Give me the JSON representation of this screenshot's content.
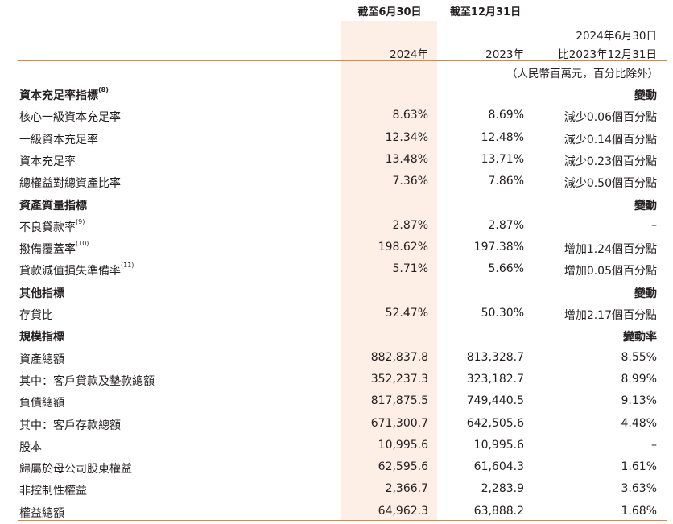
{
  "header": {
    "col1_period": "截至6月30日",
    "col2_period": "截至12月31日",
    "col1_year": "2024年",
    "col2_year": "2023年",
    "col3_line1": "2024年6月30日",
    "col3_line2": "比2023年12月31日"
  },
  "units_note": "（人民幣百萬元，百分比除外）",
  "sections": [
    {
      "title": "資本充足率指標",
      "title_note": "(8)",
      "change_header": "變動",
      "rows": [
        {
          "label": "核心一級資本充足率",
          "note": "",
          "v2024": "8.63%",
          "v2023": "8.69%",
          "change": "減少0.06個百分點"
        },
        {
          "label": "一級資本充足率",
          "note": "",
          "v2024": "12.34%",
          "v2023": "12.48%",
          "change": "減少0.14個百分點"
        },
        {
          "label": "資本充足率",
          "note": "",
          "v2024": "13.48%",
          "v2023": "13.71%",
          "change": "減少0.23個百分點"
        },
        {
          "label": "總權益對總資產比率",
          "note": "",
          "v2024": "7.36%",
          "v2023": "7.86%",
          "change": "減少0.50個百分點"
        }
      ]
    },
    {
      "title": "資產質量指標",
      "title_note": "",
      "change_header": "變動",
      "rows": [
        {
          "label": "不良貸款率",
          "note": "(9)",
          "v2024": "2.87%",
          "v2023": "2.87%",
          "change": "–"
        },
        {
          "label": "撥備覆蓋率",
          "note": "(10)",
          "v2024": "198.62%",
          "v2023": "197.38%",
          "change": "增加1.24個百分點"
        },
        {
          "label": "貸款減值損失準備率",
          "note": "(11)",
          "v2024": "5.71%",
          "v2023": "5.66%",
          "change": "增加0.05個百分點"
        }
      ]
    },
    {
      "title": "其他指標",
      "title_note": "",
      "change_header": "變動",
      "rows": [
        {
          "label": "存貸比",
          "note": "",
          "v2024": "52.47%",
          "v2023": "50.30%",
          "change": "增加2.17個百分點"
        }
      ]
    },
    {
      "title": "規模指標",
      "title_note": "",
      "change_header": "變動率",
      "rows": [
        {
          "label": "資產總額",
          "note": "",
          "v2024": "882,837.8",
          "v2023": "813,328.7",
          "change": "8.55%"
        },
        {
          "label": "其中：客戶貸款及墊款總額",
          "note": "",
          "v2024": "352,237.3",
          "v2023": "323,182.7",
          "change": "8.99%"
        },
        {
          "label": "負債總額",
          "note": "",
          "v2024": "817,875.5",
          "v2023": "749,440.5",
          "change": "9.13%"
        },
        {
          "label": "其中：客戶存款總額",
          "note": "",
          "v2024": "671,300.7",
          "v2023": "642,505.6",
          "change": "4.48%"
        },
        {
          "label": "股本",
          "note": "",
          "v2024": "10,995.6",
          "v2023": "10,995.6",
          "change": "–"
        },
        {
          "label": "歸屬於母公司股東權益",
          "note": "",
          "v2024": "62,595.6",
          "v2023": "61,604.3",
          "change": "1.61%"
        },
        {
          "label": "非控制性權益",
          "note": "",
          "v2024": "2,366.7",
          "v2023": "2,283.9",
          "change": "3.63%"
        },
        {
          "label": "權益總額",
          "note": "",
          "v2024": "64,962.3",
          "v2023": "63,888.2",
          "change": "1.68%"
        }
      ]
    }
  ]
}
